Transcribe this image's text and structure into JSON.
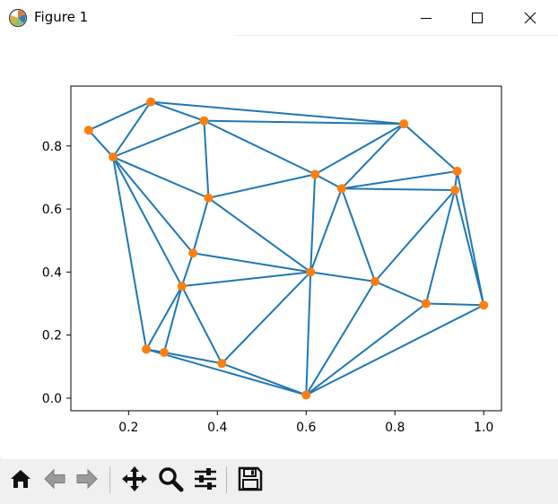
{
  "window": {
    "title": "Figure 1",
    "icons": {
      "app": "matplotlib-logo-icon",
      "minimize": "minimize-icon",
      "maximize": "maximize-icon",
      "close": "close-icon"
    }
  },
  "toolbar": {
    "tools": [
      {
        "name": "home",
        "icon": "home-icon"
      },
      {
        "name": "back",
        "icon": "arrow-left-icon"
      },
      {
        "name": "forward",
        "icon": "arrow-right-icon"
      },
      {
        "name": "pan",
        "icon": "move-icon"
      },
      {
        "name": "zoom",
        "icon": "magnifier-icon"
      },
      {
        "name": "configure-subplots",
        "icon": "sliders-icon"
      },
      {
        "name": "save",
        "icon": "floppy-disk-icon"
      }
    ]
  },
  "chart_data": {
    "type": "scatter",
    "subtype": "delaunay-triangulation",
    "title": "",
    "xlabel": "",
    "ylabel": "",
    "xlim": [
      0.07,
      1.04
    ],
    "ylim": [
      -0.04,
      0.99
    ],
    "xticks": [
      "0.2",
      "0.4",
      "0.6",
      "0.8",
      "1.0"
    ],
    "yticks": [
      "0.0",
      "0.2",
      "0.4",
      "0.6",
      "0.8"
    ],
    "grid": false,
    "edge_color": "#1f77b4",
    "point_color": "#ff7f0e",
    "points": [
      [
        0.11,
        0.85
      ],
      [
        0.25,
        0.94
      ],
      [
        0.37,
        0.88
      ],
      [
        0.82,
        0.87
      ],
      [
        0.94,
        0.72
      ],
      [
        0.165,
        0.765
      ],
      [
        0.62,
        0.71
      ],
      [
        0.68,
        0.665
      ],
      [
        0.935,
        0.66
      ],
      [
        0.38,
        0.635
      ],
      [
        0.345,
        0.46
      ],
      [
        0.61,
        0.4
      ],
      [
        0.755,
        0.37
      ],
      [
        0.32,
        0.355
      ],
      [
        0.87,
        0.3
      ],
      [
        1.0,
        0.295
      ],
      [
        0.24,
        0.155
      ],
      [
        0.28,
        0.145
      ],
      [
        0.41,
        0.11
      ],
      [
        0.6,
        0.01
      ]
    ],
    "edges": [
      [
        0,
        1
      ],
      [
        0,
        5
      ],
      [
        1,
        5
      ],
      [
        1,
        2
      ],
      [
        1,
        3
      ],
      [
        2,
        3
      ],
      [
        2,
        5
      ],
      [
        2,
        9
      ],
      [
        2,
        6
      ],
      [
        3,
        6
      ],
      [
        3,
        7
      ],
      [
        3,
        4
      ],
      [
        4,
        7
      ],
      [
        4,
        8
      ],
      [
        4,
        15
      ],
      [
        5,
        9
      ],
      [
        5,
        10
      ],
      [
        5,
        13
      ],
      [
        5,
        16
      ],
      [
        9,
        6
      ],
      [
        9,
        10
      ],
      [
        9,
        11
      ],
      [
        6,
        7
      ],
      [
        6,
        11
      ],
      [
        7,
        11
      ],
      [
        7,
        8
      ],
      [
        7,
        12
      ],
      [
        8,
        12
      ],
      [
        8,
        14
      ],
      [
        8,
        15
      ],
      [
        10,
        13
      ],
      [
        10,
        11
      ],
      [
        13,
        11
      ],
      [
        13,
        16
      ],
      [
        13,
        17
      ],
      [
        13,
        18
      ],
      [
        11,
        12
      ],
      [
        11,
        18
      ],
      [
        11,
        19
      ],
      [
        12,
        14
      ],
      [
        12,
        19
      ],
      [
        14,
        15
      ],
      [
        14,
        19
      ],
      [
        15,
        19
      ],
      [
        16,
        17
      ],
      [
        16,
        19
      ],
      [
        17,
        18
      ],
      [
        18,
        19
      ]
    ]
  }
}
